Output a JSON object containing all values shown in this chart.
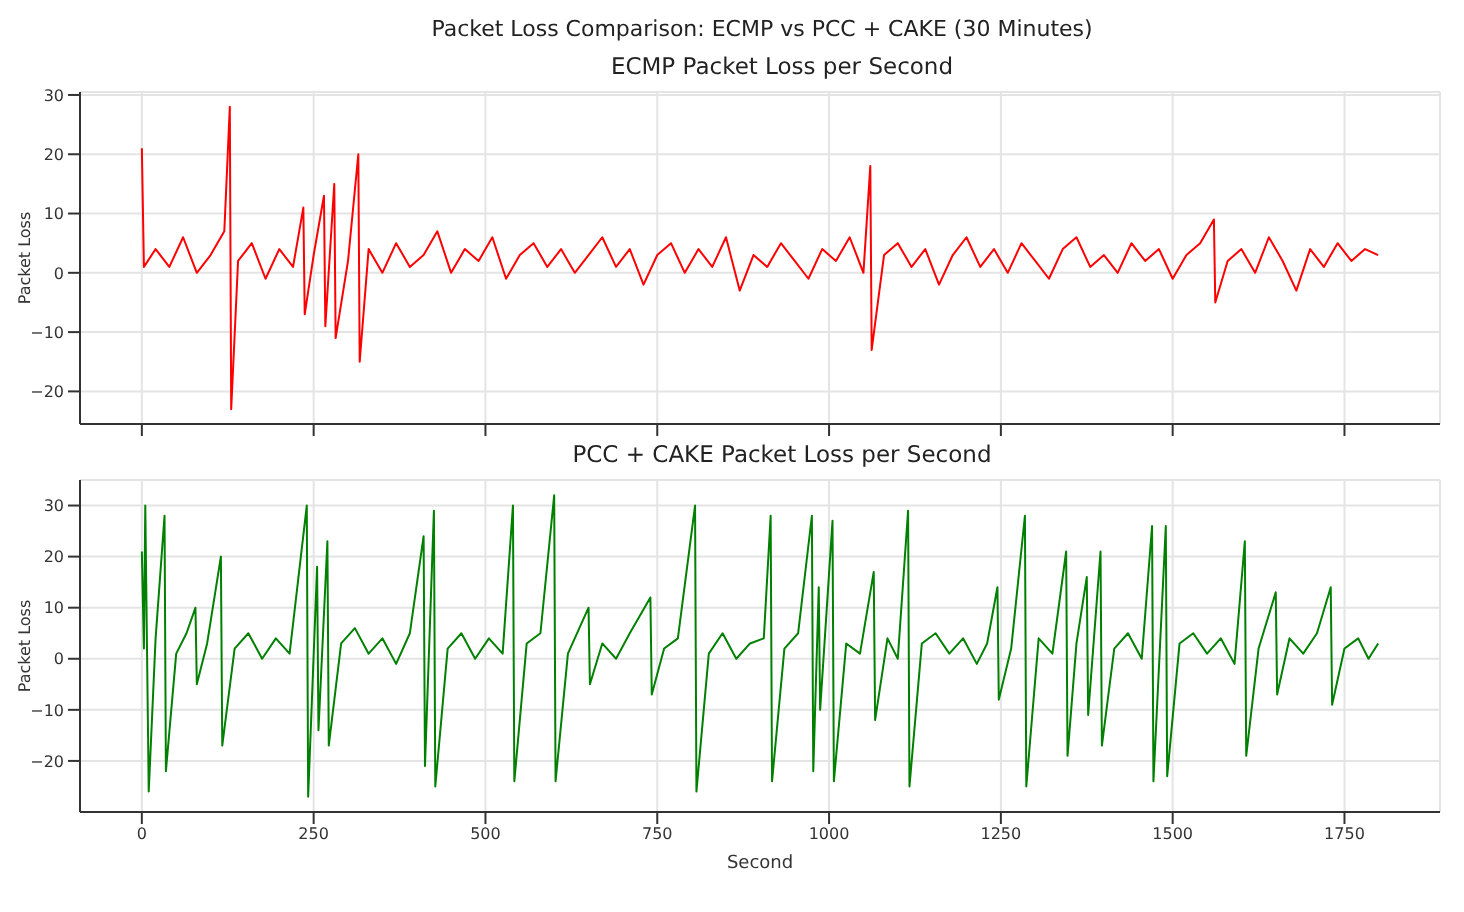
{
  "chart_data": [
    {
      "type": "line",
      "title": "Packet Loss Comparison: ECMP vs PCC + CAKE (30 Minutes)",
      "subtitle": "ECMP Packet Loss per Second",
      "ylabel": "Packet Loss",
      "xlim": [
        -90,
        1889
      ],
      "xticks": [
        0,
        250,
        500,
        750,
        1000,
        1250,
        1500,
        1750
      ],
      "ylim": [
        -25.5,
        30.5
      ],
      "yticks": [
        -20,
        -10,
        0,
        10,
        20,
        30
      ],
      "grid": true,
      "tick_labels": "y",
      "line_style": "solid",
      "x": [
        0,
        3,
        20,
        40,
        60,
        80,
        100,
        120,
        128,
        130,
        140,
        160,
        180,
        200,
        220,
        235,
        237,
        250,
        265,
        267,
        280,
        282,
        300,
        315,
        317,
        330,
        350,
        370,
        390,
        410,
        430,
        450,
        470,
        490,
        510,
        530,
        550,
        570,
        590,
        610,
        630,
        650,
        670,
        690,
        710,
        730,
        750,
        770,
        790,
        810,
        830,
        850,
        870,
        890,
        910,
        930,
        950,
        970,
        990,
        1010,
        1030,
        1050,
        1060,
        1062,
        1080,
        1100,
        1120,
        1140,
        1160,
        1180,
        1200,
        1220,
        1240,
        1260,
        1280,
        1300,
        1320,
        1340,
        1360,
        1380,
        1400,
        1420,
        1440,
        1460,
        1480,
        1500,
        1520,
        1540,
        1560,
        1562,
        1580,
        1600,
        1620,
        1640,
        1660,
        1680,
        1700,
        1720,
        1740,
        1760,
        1780,
        1799
      ],
      "series": [
        {
          "color": "#ff0000",
          "values": [
            21,
            1,
            4,
            1,
            6,
            0,
            3,
            7,
            28,
            -23,
            2,
            5,
            -1,
            4,
            1,
            11,
            -7,
            3,
            13,
            -9,
            15,
            -11,
            2,
            20,
            -15,
            4,
            0,
            5,
            1,
            3,
            7,
            0,
            4,
            2,
            6,
            -1,
            3,
            5,
            1,
            4,
            0,
            3,
            6,
            1,
            4,
            -2,
            3,
            5,
            0,
            4,
            1,
            6,
            -3,
            3,
            1,
            5,
            2,
            -1,
            4,
            2,
            6,
            0,
            18,
            -13,
            3,
            5,
            1,
            4,
            -2,
            3,
            6,
            1,
            4,
            0,
            5,
            2,
            -1,
            4,
            6,
            1,
            3,
            0,
            5,
            2,
            4,
            -1,
            3,
            5,
            9,
            -5,
            2,
            4,
            0,
            6,
            2,
            -3,
            4,
            1,
            5,
            2,
            4,
            3
          ]
        }
      ]
    },
    {
      "type": "line",
      "title": "PCC + CAKE Packet Loss per Second",
      "xlabel": "Second",
      "ylabel": "Packet Loss",
      "xlim": [
        -90,
        1889
      ],
      "xticks": [
        0,
        250,
        500,
        750,
        1000,
        1250,
        1500,
        1750
      ],
      "ylim": [
        -30,
        35
      ],
      "yticks": [
        -20,
        -10,
        0,
        10,
        20,
        30
      ],
      "grid": true,
      "line_style": "solid",
      "x": [
        0,
        3,
        5,
        10,
        20,
        33,
        35,
        50,
        65,
        78,
        80,
        95,
        115,
        117,
        135,
        155,
        175,
        195,
        215,
        240,
        242,
        255,
        257,
        270,
        272,
        290,
        310,
        330,
        350,
        370,
        390,
        410,
        412,
        425,
        427,
        445,
        465,
        485,
        505,
        525,
        540,
        542,
        560,
        580,
        600,
        602,
        620,
        650,
        652,
        670,
        690,
        710,
        740,
        742,
        760,
        780,
        805,
        807,
        825,
        845,
        865,
        885,
        905,
        915,
        917,
        935,
        955,
        975,
        977,
        985,
        987,
        1005,
        1007,
        1025,
        1045,
        1065,
        1067,
        1085,
        1100,
        1115,
        1117,
        1135,
        1155,
        1175,
        1195,
        1215,
        1230,
        1245,
        1247,
        1265,
        1285,
        1287,
        1305,
        1325,
        1345,
        1347,
        1360,
        1375,
        1377,
        1395,
        1397,
        1415,
        1435,
        1455,
        1470,
        1472,
        1490,
        1492,
        1510,
        1530,
        1550,
        1570,
        1590,
        1605,
        1607,
        1625,
        1650,
        1652,
        1670,
        1690,
        1710,
        1730,
        1732,
        1750,
        1770,
        1785,
        1799
      ],
      "series": [
        {
          "color": "#008000",
          "values": [
            21,
            2,
            30,
            -26,
            4,
            28,
            -22,
            1,
            5,
            10,
            -5,
            3,
            20,
            -17,
            2,
            5,
            0,
            4,
            1,
            30,
            -27,
            18,
            -14,
            23,
            -17,
            3,
            6,
            1,
            4,
            -1,
            5,
            24,
            -21,
            29,
            -25,
            2,
            5,
            0,
            4,
            1,
            30,
            -24,
            3,
            5,
            32,
            -24,
            1,
            10,
            -5,
            3,
            0,
            5,
            12,
            -7,
            2,
            4,
            30,
            -26,
            1,
            5,
            0,
            3,
            4,
            28,
            -24,
            2,
            5,
            28,
            -22,
            14,
            -10,
            27,
            -24,
            3,
            1,
            17,
            -12,
            4,
            0,
            29,
            -25,
            3,
            5,
            1,
            4,
            -1,
            3,
            14,
            -8,
            2,
            28,
            -25,
            4,
            1,
            21,
            -19,
            3,
            16,
            -11,
            21,
            -17,
            2,
            5,
            0,
            26,
            -24,
            26,
            -23,
            3,
            5,
            1,
            4,
            -1,
            23,
            -19,
            2,
            13,
            -7,
            4,
            1,
            5,
            14,
            -9,
            2,
            4,
            0,
            3
          ]
        }
      ]
    }
  ]
}
